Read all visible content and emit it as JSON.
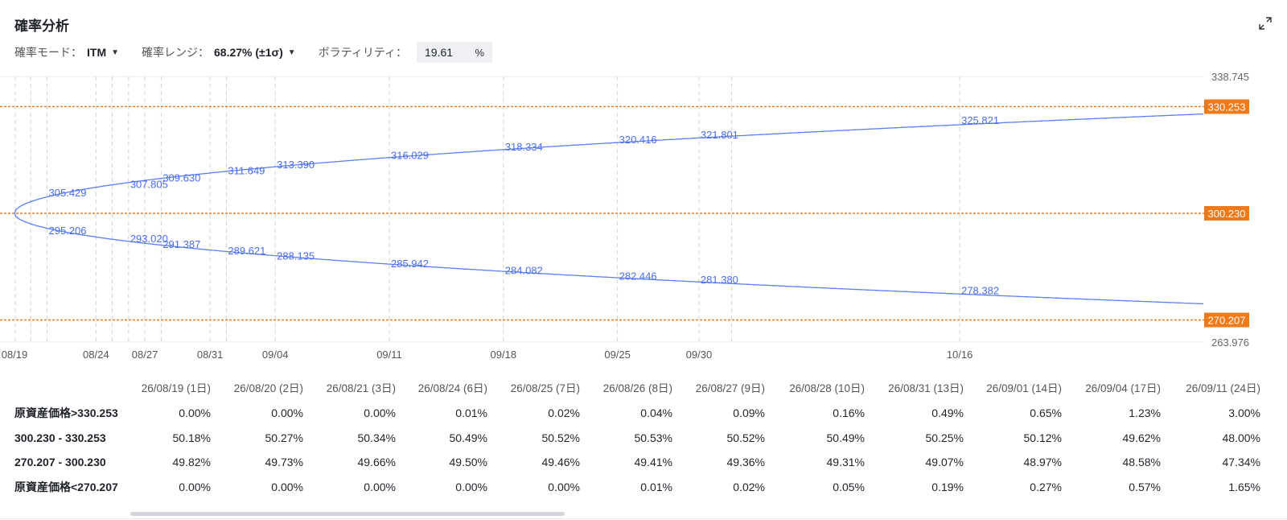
{
  "header": {
    "title": "確率分析",
    "expand_icon": "expand-icon"
  },
  "controls": {
    "mode_label": "確率モード：",
    "mode_value": "ITM",
    "range_label": "確率レンジ：",
    "range_value": "68.27% (±1σ)",
    "volatility_label": "ボラティリティ：",
    "volatility_value": "19.61",
    "volatility_unit": "%"
  },
  "chart_data": {
    "type": "line",
    "title": "",
    "xlabel": "",
    "ylabel": "",
    "ylim": [
      263.976,
      338.745
    ],
    "x_start_date": "2026-08-19",
    "x_end_date": "2026-10-31",
    "x_tick_labels": [
      {
        "label": "08/19",
        "date": "2026-08-19"
      },
      {
        "label": "08/24",
        "date": "2026-08-24"
      },
      {
        "label": "08/27",
        "date": "2026-08-27"
      },
      {
        "label": "08/31",
        "date": "2026-08-31"
      },
      {
        "label": "09/04",
        "date": "2026-09-04"
      },
      {
        "label": "09/11",
        "date": "2026-09-11"
      },
      {
        "label": "09/18",
        "date": "2026-09-18"
      },
      {
        "label": "09/25",
        "date": "2026-09-25"
      },
      {
        "label": "09/30",
        "date": "2026-09-30"
      },
      {
        "label": "10/16",
        "date": "2026-10-16"
      }
    ],
    "y_tick_labels": [
      "338.745",
      "263.976"
    ],
    "reference_lines": [
      {
        "label": "330.253",
        "value": 330.253
      },
      {
        "label": "300.230",
        "value": 300.23
      },
      {
        "label": "270.207",
        "value": 270.207
      }
    ],
    "dashed_grid_dates": [
      "2026-08-20",
      "2026-08-21",
      "2026-08-24",
      "2026-08-25",
      "2026-08-26",
      "2026-08-27",
      "2026-08-28",
      "2026-08-31",
      "2026-09-01",
      "2026-09-04",
      "2026-09-11",
      "2026-09-18",
      "2026-09-25",
      "2026-09-30",
      "2026-10-02",
      "2026-10-16"
    ],
    "series": [
      {
        "name": "upper",
        "points": [
          {
            "date": "2026-08-21",
            "value": 305.429
          },
          {
            "date": "2026-08-26",
            "value": 307.805
          },
          {
            "date": "2026-08-28",
            "value": 309.63
          },
          {
            "date": "2026-09-01",
            "value": 311.649
          },
          {
            "date": "2026-09-04",
            "value": 313.39
          },
          {
            "date": "2026-09-11",
            "value": 316.029
          },
          {
            "date": "2026-09-18",
            "value": 318.334
          },
          {
            "date": "2026-09-25",
            "value": 320.416
          },
          {
            "date": "2026-09-30",
            "value": 321.801
          },
          {
            "date": "2026-10-16",
            "value": 325.821
          }
        ]
      },
      {
        "name": "lower",
        "points": [
          {
            "date": "2026-08-21",
            "value": 295.206
          },
          {
            "date": "2026-08-26",
            "value": 293.02
          },
          {
            "date": "2026-08-28",
            "value": 291.387
          },
          {
            "date": "2026-09-01",
            "value": 289.621
          },
          {
            "date": "2026-09-04",
            "value": 288.135
          },
          {
            "date": "2026-09-11",
            "value": 285.942
          },
          {
            "date": "2026-09-18",
            "value": 284.082
          },
          {
            "date": "2026-09-25",
            "value": 282.446
          },
          {
            "date": "2026-09-30",
            "value": 281.38
          },
          {
            "date": "2026-10-16",
            "value": 278.382
          }
        ]
      }
    ],
    "center_value": 300.23,
    "colors": {
      "line": "#5b7ff5",
      "reference": "#f07a1a",
      "tag_bg": "#f07a1a",
      "label": "#4a6cf0"
    }
  },
  "table": {
    "columns": [
      "26/08/19 (1日)",
      "26/08/20 (2日)",
      "26/08/21 (3日)",
      "26/08/24 (6日)",
      "26/08/25 (7日)",
      "26/08/26 (8日)",
      "26/08/27 (9日)",
      "26/08/28 (10日)",
      "26/08/31 (13日)",
      "26/09/01 (14日)",
      "26/09/04 (17日)",
      "26/09/11 (24日)"
    ],
    "rows": [
      {
        "label": "原資産価格>330.253",
        "values": [
          "0.00%",
          "0.00%",
          "0.00%",
          "0.01%",
          "0.02%",
          "0.04%",
          "0.09%",
          "0.16%",
          "0.49%",
          "0.65%",
          "1.23%",
          "3.00%"
        ]
      },
      {
        "label": "300.230 - 330.253",
        "values": [
          "50.18%",
          "50.27%",
          "50.34%",
          "50.49%",
          "50.52%",
          "50.53%",
          "50.52%",
          "50.49%",
          "50.25%",
          "50.12%",
          "49.62%",
          "48.00%"
        ]
      },
      {
        "label": "270.207 - 300.230",
        "values": [
          "49.82%",
          "49.73%",
          "49.66%",
          "49.50%",
          "49.46%",
          "49.41%",
          "49.36%",
          "49.31%",
          "49.07%",
          "48.97%",
          "48.58%",
          "47.34%"
        ]
      },
      {
        "label": "原資産価格<270.207",
        "values": [
          "0.00%",
          "0.00%",
          "0.00%",
          "0.00%",
          "0.00%",
          "0.01%",
          "0.02%",
          "0.05%",
          "0.19%",
          "0.27%",
          "0.57%",
          "1.65%"
        ]
      }
    ]
  }
}
